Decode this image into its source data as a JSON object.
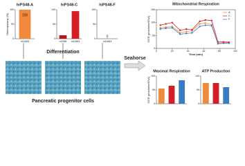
{
  "chart_data": [
    {
      "type": "bar",
      "title": "hiPS48-A",
      "y_label": "Heteroplasmy (%)",
      "categories": [
        "m11663"
      ],
      "values": [
        100
      ],
      "colors": [
        "#f08a3c"
      ],
      "ylim": [
        0,
        100
      ],
      "yticks": [
        0,
        50,
        100
      ],
      "show_values": true
    },
    {
      "type": "bar",
      "title": "hiPS48-C",
      "categories": [
        "m2366",
        "m11663"
      ],
      "values": [
        12,
        95
      ],
      "colors": [
        "#b8171c",
        "#d21f26"
      ],
      "ylim": [
        0,
        100
      ],
      "yticks": [
        0,
        50,
        100
      ]
    },
    {
      "type": "bar",
      "title": "hiPS48-F",
      "categories": [
        "m11663"
      ],
      "values": [
        0
      ],
      "colors": [
        "#3a7cc4"
      ],
      "ylim": [
        0,
        100
      ],
      "yticks": [
        0,
        50,
        100
      ],
      "show_values": true
    },
    {
      "type": "line",
      "title": "Mitochondrial Respiration",
      "x_label": "Time (min)",
      "y_label": "OCR (pmol/min/DNA)",
      "x": [
        5,
        12,
        20,
        30,
        38,
        45,
        55,
        62,
        70,
        78,
        85,
        92
      ],
      "series": [
        {
          "name": "A",
          "color": "#f08a3c",
          "values": [
            80,
            82,
            85,
            60,
            65,
            68,
            95,
            98,
            92,
            20,
            22,
            22
          ]
        },
        {
          "name": "C",
          "color": "#d21f26",
          "values": [
            90,
            95,
            100,
            70,
            75,
            72,
            105,
            110,
            108,
            25,
            25,
            24
          ]
        },
        {
          "name": "F",
          "color": "#3a7cc4",
          "values": [
            75,
            78,
            80,
            55,
            58,
            60,
            85,
            90,
            88,
            18,
            20,
            20
          ]
        }
      ],
      "xlim": [
        0,
        100
      ],
      "xticks": [
        0,
        20,
        40,
        60,
        80,
        100
      ],
      "ylim": [
        0,
        150
      ],
      "yticks": [
        0,
        50,
        100,
        150
      ],
      "legend": "top-right"
    },
    {
      "type": "bar",
      "title": "Maximal Respiration",
      "y_label": "OCR (pmol/min/DNA)",
      "categories": [
        null,
        null,
        null
      ],
      "values": [
        55,
        65,
        85
      ],
      "colors": [
        "#f08a3c",
        "#d21f26",
        "#3a7cc4"
      ],
      "ylim": [
        0,
        100
      ],
      "yticks": [
        0,
        50,
        100
      ]
    },
    {
      "type": "bar",
      "title": "ATP Production",
      "categories": [
        null,
        null,
        null
      ],
      "values": [
        75,
        75,
        60
      ],
      "colors": [
        "#f08a3c",
        "#d21f26",
        "#3a7cc4"
      ],
      "ylim": [
        0,
        100
      ],
      "yticks": [
        0,
        50,
        100
      ]
    }
  ],
  "labels": {
    "differentiation": "Differentiation",
    "seahorse": "Seahorse",
    "cells": "Pancreatic progenitor cells"
  }
}
